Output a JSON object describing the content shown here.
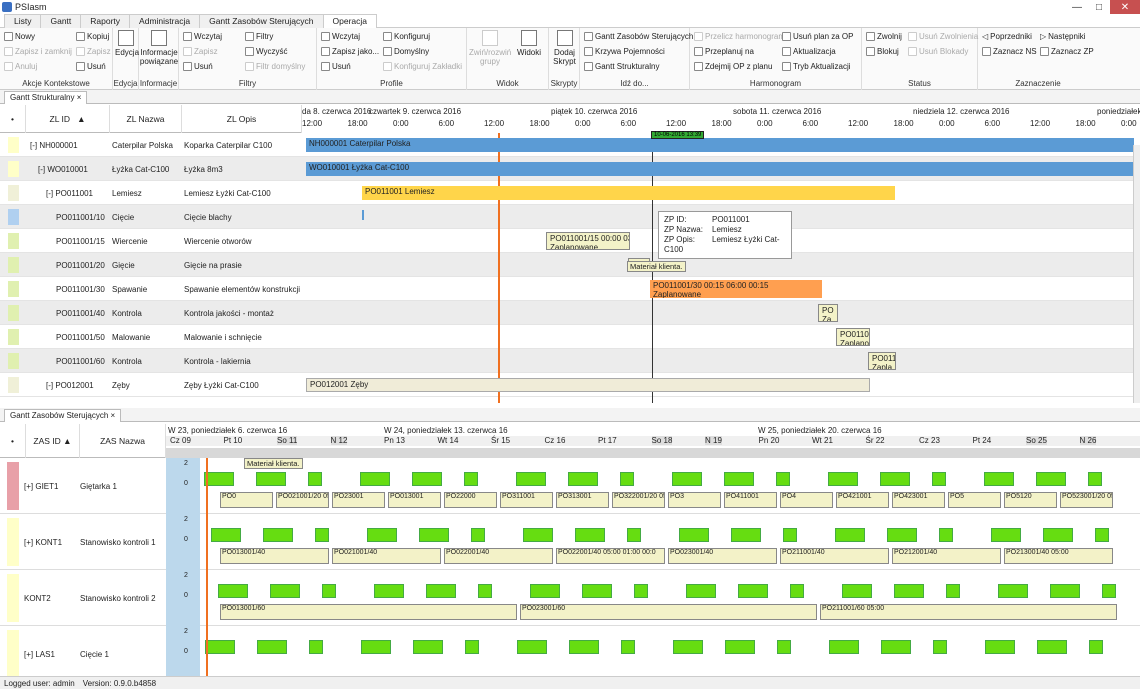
{
  "app": {
    "title": "PSIasm"
  },
  "menu_tabs": [
    "Listy",
    "Gantt",
    "Raporty",
    "Administracja",
    "Gantt Zasobów Sterujących",
    "Operacja"
  ],
  "ribbon": {
    "akcje": {
      "label": "Akcje Kontekstowe",
      "nowy": "Nowy",
      "kopiuj": "Kopiuj",
      "zapisz_zamknij": "Zapisz i zamknij",
      "zapisz": "Zapisz",
      "anuluj": "Anuluj",
      "usun": "Usuń"
    },
    "edycja": {
      "label": "Edycja",
      "edycja": "Edycja"
    },
    "informacje": {
      "label": "Informacje",
      "info_powiazane": "Informacje powiązane"
    },
    "filtry": {
      "label": "Filtry",
      "wczytaj": "Wczytaj",
      "filtry": "Filtry",
      "zapisz": "Zapisz",
      "wyczysc": "Wyczyść",
      "usun": "Usuń",
      "konfig": "Filtr domyślny"
    },
    "profile": {
      "label": "Profile",
      "wczytaj": "Wczytaj",
      "konfiguruj": "Konfiguruj",
      "zapisz_jako": "Zapisz jako...",
      "domyslny": "Domyślny",
      "usun": "Usuń",
      "konfig_zakl": "Konfiguruj Zakładki"
    },
    "widok": {
      "label": "Widok",
      "zwin": "Zwiń/rozwiń grupy",
      "widoki": "Widoki"
    },
    "skrypty": {
      "label": "Skrypty",
      "dodaj": "Dodaj Skrypt"
    },
    "idz": {
      "label": "Idź do...",
      "gantt_zs": "Gantt Zasobów Sterujących",
      "krzywa": "Krzywa Pojemności",
      "gantt_str": "Gantt Strukturalny"
    },
    "harmonogram": {
      "label": "Harmonogram",
      "przelicz": "Przelicz harmonogram",
      "przeplanuj": "Przeplanuj na",
      "zdejmij": "Zdejmij OP z planu",
      "usun_plan": "Usuń plan za OP",
      "aktualizacja": "Aktualizacja",
      "tryb": "Tryb Aktualizacji"
    },
    "status": {
      "label": "Status",
      "zwolnij": "Zwolnij",
      "blokuj": "Blokuj",
      "usun_zw": "Usuń Zwolnienia",
      "usun_bl": "Usuń Blokady"
    },
    "zaznaczenie": {
      "label": "Zaznaczenie",
      "poprzedniki": "Poprzedniki",
      "nastepniki": "Następniki",
      "zaznacz_ns": "Zaznacz NS",
      "zaznacz_zp": "Zaznacz ZP"
    }
  },
  "panel1": {
    "tab": "Gantt Strukturalny",
    "cols": {
      "id": "ZL ID",
      "nazwa": "ZL Nazwa",
      "opis": "ZL Opis"
    },
    "dates": [
      "da 8. czerwca 2016",
      "czwartek 9. czerwca 2016",
      "piątek 10. czerwca 2016",
      "sobota 11. czerwca 2016",
      "niedziela 12. czerwca 2016",
      "poniedziałek"
    ],
    "times": [
      "12:00",
      "18:00",
      "0:00",
      "6:00",
      "12:00",
      "18:00",
      "0:00",
      "6:00",
      "12:00",
      "18:00",
      "0:00",
      "6:00",
      "12:00",
      "18:00",
      "0:00",
      "6:00",
      "12:00",
      "18:00",
      "0:00"
    ],
    "now_marker": "10-06-2016 13:39",
    "rows": [
      {
        "id": "[-] NH000001",
        "nazwa": "Caterpilar Polska",
        "opis": "Koparka Caterpilar C100",
        "bar": "NH000001 Caterpilar Polska",
        "color": "#ffffc8"
      },
      {
        "id": "[-] WO010001",
        "nazwa": "Łyżka Cat-C100",
        "opis": "Łyżka 8m3",
        "bar": "WO010001 Łyżka Cat-C100",
        "color": "#ffffc8"
      },
      {
        "id": "[-] PO011001",
        "nazwa": "Lemiesz",
        "opis": "Lemiesz Łyżki Cat-C100",
        "bar": "PO011001 Lemiesz",
        "color": "#f0f0d8"
      },
      {
        "id": "PO011001/10",
        "nazwa": "Cięcie",
        "opis": "Cięcie blachy",
        "bar": "",
        "color": "#b0d0f0"
      },
      {
        "id": "PO011001/15",
        "nazwa": "Wiercenie",
        "opis": "Wiercenie otworów",
        "bar": "PO011001/15 00:00 03:0",
        "bar2": "Zaplanowane",
        "color": "#e0f0b0"
      },
      {
        "id": "PO011001/20",
        "nazwa": "Gięcie",
        "opis": "Gięcie na prasie",
        "bar": "Zapl",
        "color": "#e0f0b0"
      },
      {
        "id": "PO011001/30",
        "nazwa": "Spawanie",
        "opis": "Spawanie elementów konstrukcji",
        "bar": "PO011001/30 00:15 06:00 00:15",
        "bar2": "Zaplanowane",
        "color": "#e0f0b0"
      },
      {
        "id": "PO011001/40",
        "nazwa": "Kontrola",
        "opis": "Kontrola jakości - montaż",
        "bar": "PO",
        "bar2": "Za",
        "color": "#e0f0b0"
      },
      {
        "id": "PO011001/50",
        "nazwa": "Malowanie",
        "opis": "Malowanie i schnięcie",
        "bar": "PO01100",
        "bar2": "Zaplano",
        "color": "#e0f0b0"
      },
      {
        "id": "PO011001/60",
        "nazwa": "Kontrola",
        "opis": "Kontrola - lakiernia",
        "bar": "PO011",
        "bar2": "Zapla",
        "color": "#e0f0b0"
      },
      {
        "id": "[-] PO012001",
        "nazwa": "Zęby",
        "opis": "Zęby Łyżki Cat-C100",
        "bar": "PO012001 Zęby",
        "color": "#f0f0d8"
      }
    ],
    "tooltip": {
      "k1": "ZP ID:",
      "v1": "PO011001",
      "k2": "ZP Nazwa:",
      "v2": "Lemiesz",
      "k3": "ZP Opis:",
      "v3": "Lemiesz Łyżki Cat-C100"
    },
    "material": "Materiał klienta."
  },
  "panel2": {
    "tab": "Gantt Zasobów Sterujących",
    "cols": {
      "id": "ZAS ID",
      "nazwa": "ZAS Nazwa"
    },
    "weeks": [
      "W 23, poniedziałek 6. czerwca 16",
      "W 24, poniedziałek 13. czerwca 16",
      "W 25, poniedziałek 20. czerwca 16"
    ],
    "days": [
      "Cz 09",
      "Pt 10",
      "So 11",
      "N 12",
      "Pn 13",
      "Wt 14",
      "Śr 15",
      "Cz 16",
      "Pt 17",
      "So 18",
      "N 19",
      "Pn 20",
      "Wt 21",
      "Śr 22",
      "Cz 23",
      "Pt 24",
      "So 25",
      "N 26"
    ],
    "rows": [
      {
        "id": "[+] GIET1",
        "nazwa": "Giętarka 1",
        "color": "#e8a0a8"
      },
      {
        "id": "[+] KONT1",
        "nazwa": "Stanowisko kontroli 1",
        "color": "#ffffc8"
      },
      {
        "id": "KONT2",
        "nazwa": "Stanowisko kontroli 2",
        "color": "#ffffc8"
      },
      {
        "id": "[+] LAS1",
        "nazwa": "Cięcie 1",
        "color": "#ffffc8"
      }
    ],
    "scale": [
      "2",
      "0"
    ],
    "material": "Materiał klienta.",
    "bars_row0": [
      "PO0",
      "PO021001/20 05:00 03:00",
      "PO23001",
      "PO013001",
      "PO22000",
      "PO311001",
      "PO313001",
      "PO322001/20 05:00 01:0",
      "PO3",
      "PO411001",
      "PO4",
      "PO421001",
      "PO423001",
      "PO5",
      "PO5120",
      "PO523001/20 05:00"
    ],
    "bars_row1": [
      "PO013001/40",
      "PO021001/40",
      "PO022001/40",
      "PO022001/40 05:00 01:00 00:0",
      "PO023001/40",
      "PO211001/40",
      "PO212001/40",
      "PO213001/40 05:00"
    ],
    "bars_row2": [
      "PO013001/60",
      "PO023001/60",
      "PO211001/60 05:00"
    ]
  },
  "status": {
    "user": "Logged user: admin",
    "version": "Version: 0.9.0.b4858"
  }
}
